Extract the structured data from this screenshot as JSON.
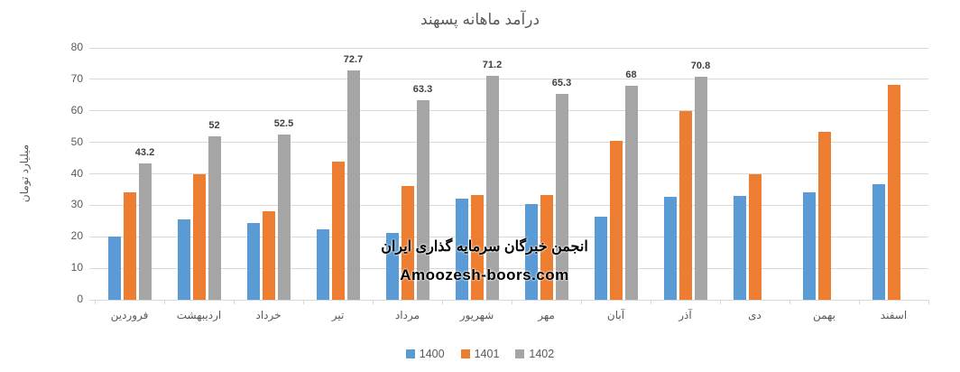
{
  "title": "درآمد ماهانه پسهند",
  "watermark": {
    "line1": "انجمن خبرگان سرمایه گذاری ایران",
    "line2": "Amoozesh-boors.com"
  },
  "colors": {
    "series_1400": "#5B9BD5",
    "series_1401": "#ED7D31",
    "series_1402": "#A5A5A5",
    "gridline": "#d9d9d9",
    "axis_text": "#595959",
    "data_label": "#404040",
    "watermark_text": "#000000"
  },
  "chart_data": {
    "type": "bar",
    "title": "درآمد ماهانه پسهند",
    "xlabel": "",
    "ylabel": "میلیارد تومان",
    "ylim": [
      0,
      80
    ],
    "ytick_step": 10,
    "grid": true,
    "legend_position": "bottom",
    "categories": [
      "فروردین",
      "اردیبهشت",
      "خرداد",
      "تیر",
      "مرداد",
      "شهریور",
      "مهر",
      "آبان",
      "آذر",
      "دی",
      "بهمن",
      "اسفند"
    ],
    "series": [
      {
        "name": "1400",
        "color": "#5B9BD5",
        "show_labels": false,
        "values": [
          20,
          25.5,
          24.5,
          22.3,
          21.3,
          32,
          30.5,
          26.5,
          32.7,
          33,
          34,
          36.6
        ]
      },
      {
        "name": "1401",
        "color": "#ED7D31",
        "show_labels": false,
        "values": [
          34,
          40,
          28,
          44,
          36,
          33.2,
          33.3,
          50.5,
          60,
          40,
          53.2,
          68.2
        ]
      },
      {
        "name": "1402",
        "color": "#A5A5A5",
        "show_labels": true,
        "values": [
          43.2,
          52,
          52.5,
          72.7,
          63.3,
          71.2,
          65.3,
          68,
          70.8,
          null,
          null,
          null
        ]
      }
    ]
  }
}
